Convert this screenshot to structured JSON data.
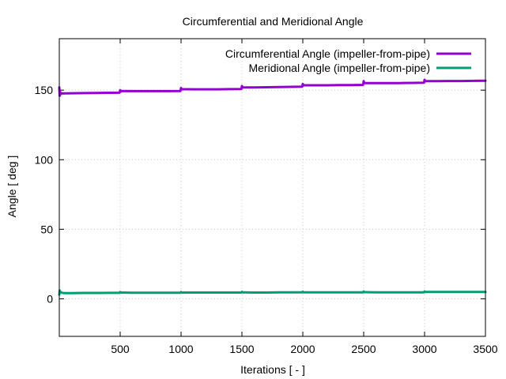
{
  "chart_data": {
    "type": "line",
    "title": "Circumferential and Meridional Angle",
    "xlabel": "Iterations [ - ]",
    "ylabel": "Angle [ deg ]",
    "xlim": [
      0,
      3500
    ],
    "ylim": [
      -27,
      187
    ],
    "xticks": [
      500,
      1000,
      1500,
      2000,
      2500,
      3000,
      3500
    ],
    "yticks": [
      0,
      50,
      100,
      150
    ],
    "grid": true,
    "legend_position": "top-right",
    "series": [
      {
        "name": "Circumferential Angle (impeller-from-pipe)",
        "color": "#9400d3",
        "x": [
          0,
          3,
          6,
          10,
          15,
          20,
          30,
          50,
          100,
          200,
          300,
          400,
          495,
          500,
          505,
          510,
          600,
          700,
          800,
          900,
          995,
          1000,
          1005,
          1010,
          1100,
          1200,
          1300,
          1400,
          1495,
          1500,
          1505,
          1510,
          1600,
          1700,
          1800,
          1900,
          1995,
          2000,
          2005,
          2010,
          2100,
          2200,
          2300,
          2400,
          2495,
          2500,
          2505,
          2510,
          2600,
          2700,
          2800,
          2900,
          2995,
          3000,
          3005,
          3010,
          3100,
          3200,
          3300,
          3400,
          3500
        ],
        "y": [
          152,
          146,
          149,
          147,
          148,
          147.8,
          147.6,
          147.7,
          147.8,
          147.9,
          148,
          148.1,
          148.2,
          150,
          149,
          149.4,
          149.3,
          149.3,
          149.3,
          149.3,
          149.4,
          151.5,
          150.5,
          150.7,
          150.6,
          150.6,
          150.6,
          150.7,
          150.8,
          153,
          151.8,
          152,
          152,
          152.1,
          152.2,
          152.4,
          152.5,
          154.5,
          153.4,
          153.5,
          153.5,
          153.5,
          153.6,
          153.7,
          153.8,
          156.5,
          155,
          155.1,
          155.1,
          155.1,
          155.1,
          155.2,
          155.3,
          157.5,
          156.3,
          156.5,
          156.5,
          156.6,
          156.6,
          156.7,
          156.8
        ]
      },
      {
        "name": "Meridional Angle (impeller-from-pipe)",
        "color": "#009e73",
        "x": [
          0,
          3,
          6,
          10,
          15,
          20,
          30,
          50,
          100,
          200,
          300,
          400,
          495,
          500,
          505,
          510,
          600,
          700,
          800,
          900,
          995,
          1000,
          1005,
          1010,
          1100,
          1200,
          1300,
          1400,
          1495,
          1500,
          1505,
          1510,
          1600,
          1700,
          1800,
          1900,
          1995,
          2000,
          2005,
          2010,
          2100,
          2200,
          2300,
          2400,
          2495,
          2500,
          2505,
          2510,
          2600,
          2700,
          2800,
          2900,
          2995,
          3000,
          3005,
          3010,
          3100,
          3200,
          3300,
          3400,
          3500
        ],
        "y": [
          3,
          6,
          4.5,
          5,
          4.6,
          4.4,
          4.2,
          4.1,
          4.1,
          4.2,
          4.2,
          4.3,
          4.3,
          4.9,
          4.5,
          4.5,
          4.4,
          4.4,
          4.4,
          4.4,
          4.4,
          4.9,
          4.5,
          4.5,
          4.5,
          4.5,
          4.5,
          4.5,
          4.5,
          5,
          4.6,
          4.6,
          4.5,
          4.5,
          4.6,
          4.6,
          4.6,
          5.1,
          4.7,
          4.7,
          4.7,
          4.6,
          4.6,
          4.6,
          4.6,
          5.3,
          4.8,
          4.8,
          4.7,
          4.7,
          4.7,
          4.7,
          4.7,
          5.3,
          4.9,
          4.9,
          4.9,
          4.9,
          4.9,
          4.9,
          4.9
        ]
      }
    ]
  }
}
